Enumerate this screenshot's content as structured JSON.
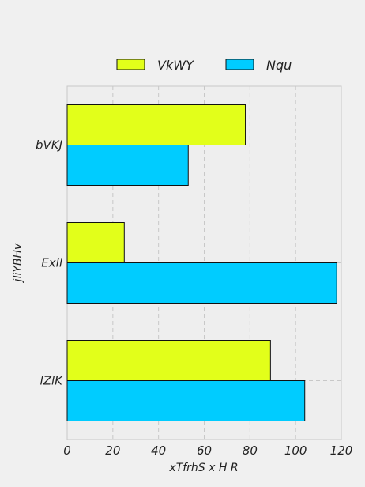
{
  "chart_data": {
    "type": "bar",
    "orientation": "horizontal",
    "categories": [
      "bVKJ",
      "Exll",
      "lZlK"
    ],
    "series": [
      {
        "name": "VkWY",
        "values": [
          78,
          25,
          89
        ],
        "color": "#e2ff1a"
      },
      {
        "name": "Nqu",
        "values": [
          53,
          118,
          104
        ],
        "color": "#00ccff"
      }
    ],
    "xlabel": "xTfrhS x H R",
    "ylabel": "jliYBHv",
    "xlim": [
      0,
      120
    ],
    "xticks": [
      0,
      20,
      40,
      60,
      80,
      100,
      120
    ],
    "grid": true,
    "legend_position": "top-center",
    "background_color": "#f0f0f0",
    "plot_background_color": "#eeeeee"
  }
}
